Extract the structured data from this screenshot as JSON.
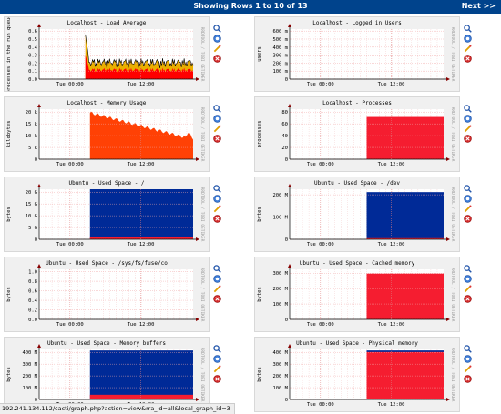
{
  "header": {
    "title": "Showing Rows 1 to 10 of 13",
    "next_label": "Next >>"
  },
  "watermark": "RRDTOOL / TOBI OETIKER",
  "x_ticks": [
    "Tue 00:00",
    "Tue 12:00"
  ],
  "graphs": [
    {
      "title": "Localhost - Load Average",
      "ylabel": "processes in the run queue",
      "y_ticks": [
        "0.0",
        "0.1",
        "0.2",
        "0.3",
        "0.4",
        "0.5",
        "0.6"
      ],
      "ylim": [
        0,
        0.65
      ],
      "type": "load",
      "colors": [
        "#EAAF00",
        "#FF0000",
        "#000000"
      ]
    },
    {
      "title": "Localhost - Logged in Users",
      "ylabel": "users",
      "y_ticks": [
        "0",
        "100 m",
        "200 m",
        "300 m",
        "400 m",
        "500 m",
        "600 m"
      ],
      "ylim": [
        0,
        0.65
      ],
      "type": "empty"
    },
    {
      "title": "Localhost - Memory Usage",
      "ylabel": "kilobytes",
      "y_ticks": [
        "0",
        "5 k",
        "10 k",
        "15 k",
        "20 k"
      ],
      "ylim": [
        0,
        21000
      ],
      "type": "memory",
      "colors": [
        "#FF4105"
      ]
    },
    {
      "title": "Localhost - Processes",
      "ylabel": "processes",
      "y_ticks": [
        "0",
        "20",
        "40",
        "60",
        "80"
      ],
      "ylim": [
        0,
        90
      ],
      "type": "fill",
      "start": 0.5,
      "level": 76,
      "colors": [
        "#F51D30"
      ]
    },
    {
      "title": "Ubuntu - Used Space - /",
      "ylabel": "bytes",
      "y_ticks": [
        "0",
        "5 G",
        "10 G",
        "15 G",
        "20 G"
      ],
      "ylim": [
        0,
        21
      ],
      "type": "stack",
      "start": 0.33,
      "level": 21,
      "low": 1,
      "colors": [
        "#002A97",
        "#F51D30"
      ]
    },
    {
      "title": "Ubuntu - Used Space - /dev",
      "ylabel": "bytes",
      "y_ticks": [
        "0",
        "100 M",
        "200 M"
      ],
      "ylim": [
        0,
        260
      ],
      "type": "stack",
      "start": 0.5,
      "level": 245,
      "low": 0,
      "colors": [
        "#002A97",
        "#F51D30"
      ]
    },
    {
      "title": "Ubuntu - Used Space - /sys/fs/fuse/co",
      "ylabel": "bytes",
      "y_ticks": [
        "0.0",
        "0.2",
        "0.4",
        "0.6",
        "0.8",
        "1.0"
      ],
      "ylim": [
        0,
        1.1
      ],
      "type": "empty"
    },
    {
      "title": "Ubuntu - Used Space - Cached memory",
      "ylabel": "bytes",
      "y_ticks": [
        "0",
        "100 M",
        "200 M",
        "300 M"
      ],
      "ylim": [
        0,
        350
      ],
      "type": "fill",
      "start": 0.5,
      "level": 320,
      "colors": [
        "#F51D30"
      ]
    },
    {
      "title": "Ubuntu - Used Space - Memory buffers",
      "ylabel": "bytes",
      "y_ticks": [
        "0",
        "100 M",
        "200 M",
        "300 M",
        "400 M"
      ],
      "ylim": [
        0,
        480
      ],
      "type": "stack",
      "start": 0.33,
      "level": 470,
      "low": 45,
      "colors": [
        "#002A97",
        "#F51D30"
      ]
    },
    {
      "title": "Ubuntu - Used Space - Physical memory",
      "ylabel": "bytes",
      "y_ticks": [
        "0",
        "100 M",
        "200 M",
        "300 M",
        "400 M"
      ],
      "ylim": [
        0,
        480
      ],
      "type": "stack",
      "start": 0.5,
      "level": 470,
      "low": 455,
      "colors": [
        "#002A97",
        "#F51D30"
      ]
    }
  ],
  "icons": [
    "zoom-icon",
    "query-icon",
    "edit-icon",
    "delete-icon"
  ],
  "statusbar": {
    "url": "192.241.134.112/cacti/graph.php?action=view&rra_id=all&local_graph_id=3"
  }
}
